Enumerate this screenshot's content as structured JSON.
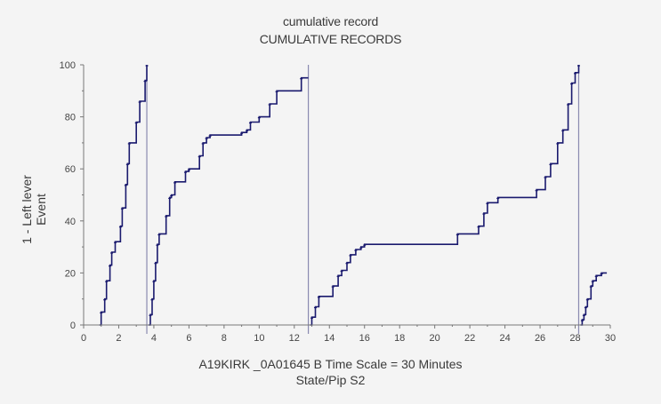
{
  "chart_data": {
    "type": "line",
    "title": "cumulative record",
    "subtitle": "CUMULATIVE RECORDS",
    "xlabel": "A19KIRK _0A01645 B   Time Scale = 30 Minutes",
    "xlabel2": "State/Pip S2",
    "ylabel": "1 - Left lever  Event",
    "xlim": [
      0,
      30
    ],
    "ylim": [
      0,
      100
    ],
    "xticks": [
      "0",
      "2",
      "4",
      "6",
      "8",
      "10",
      "12",
      "14",
      "16",
      "18",
      "20",
      "22",
      "24",
      "26",
      "28",
      "30"
    ],
    "yticks": [
      "0",
      "20",
      "40",
      "60",
      "80",
      "100"
    ],
    "grid": false,
    "colors": {
      "record": "#1a1a6e",
      "reset": "#8a8ab0",
      "axis": "#777777"
    },
    "resets": [
      3.6,
      12.8,
      28.2
    ],
    "series": [
      {
        "x": [
          0.9,
          1.0,
          1.2,
          1.3,
          1.5,
          1.6,
          1.8,
          1.9,
          2.1,
          2.2,
          2.4,
          2.5,
          2.6,
          2.8,
          3.0,
          3.2,
          3.4,
          3.5,
          3.6
        ],
        "y": [
          0,
          5,
          10,
          17,
          23,
          28,
          32,
          32,
          38,
          45,
          54,
          62,
          70,
          70,
          78,
          86,
          86,
          94,
          100
        ]
      },
      {
        "x": [
          3.7,
          3.8,
          3.9,
          4.0,
          4.1,
          4.2,
          4.3,
          4.4,
          4.7,
          4.9,
          5.0,
          5.2,
          5.5,
          5.8,
          6.0,
          6.2,
          6.6,
          6.8,
          7.0,
          7.2,
          8.0,
          8.6,
          9.0,
          9.3,
          9.5,
          10.0,
          10.2,
          10.6,
          11.0,
          11.7,
          12.0,
          12.4,
          12.6,
          12.8
        ],
        "y": [
          0,
          4,
          10,
          17,
          24,
          31,
          35,
          35,
          42,
          49,
          50,
          55,
          55,
          59,
          60,
          60,
          65,
          70,
          72,
          73,
          73,
          73,
          74,
          75,
          78,
          80,
          80,
          85,
          90,
          90,
          90,
          95,
          95,
          95
        ]
      },
      {
        "x": [
          12.9,
          13.0,
          13.2,
          13.4,
          13.6,
          14.0,
          14.2,
          14.5,
          14.7,
          15.0,
          15.2,
          15.5,
          15.8,
          16.0,
          17.0,
          18.0,
          19.0,
          20.0,
          21.0,
          21.3,
          21.8,
          22.2,
          22.5,
          22.8,
          23.0,
          23.3,
          23.6,
          24.0,
          25.0,
          25.5,
          25.8,
          26.0,
          26.3,
          26.6,
          27.0,
          27.3,
          27.6,
          27.8,
          28.0,
          28.2
        ],
        "y": [
          0,
          3,
          7,
          11,
          11,
          11,
          15,
          19,
          21,
          24,
          27,
          29,
          30,
          31,
          31,
          31,
          31,
          31,
          31,
          35,
          35,
          35,
          38,
          43,
          47,
          47,
          49,
          49,
          49,
          49,
          52,
          52,
          57,
          62,
          70,
          75,
          85,
          93,
          97,
          100
        ]
      },
      {
        "x": [
          28.3,
          28.4,
          28.5,
          28.6,
          28.7,
          28.9,
          29.0,
          29.2,
          29.5,
          29.8
        ],
        "y": [
          0,
          2,
          4,
          7,
          10,
          15,
          17,
          19,
          20,
          20
        ]
      }
    ]
  }
}
